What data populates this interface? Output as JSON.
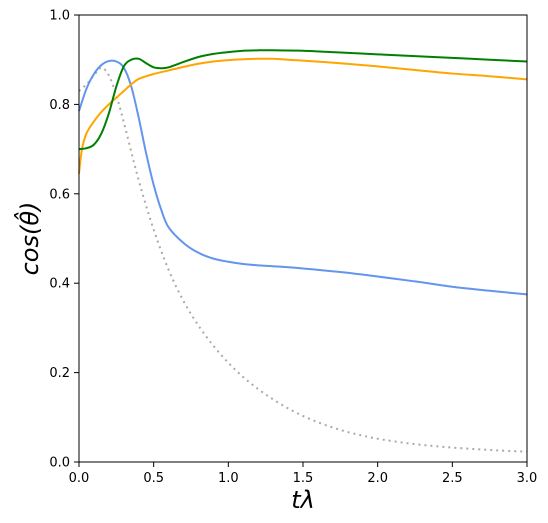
{
  "chart_data": {
    "type": "line",
    "title": "",
    "xlabel": "tλ",
    "ylabel": "cos(θ̂)",
    "xlim": [
      0.0,
      3.0
    ],
    "ylim": [
      0.0,
      1.0
    ],
    "grid": false,
    "legend": "none",
    "x_ticks": [
      "0.0",
      "0.5",
      "1.0",
      "1.5",
      "2.0",
      "2.5",
      "3.0"
    ],
    "y_ticks": [
      "0.0",
      "0.2",
      "0.4",
      "0.6",
      "0.8",
      "1.0"
    ],
    "series": [
      {
        "color": "#aaaaaa",
        "style": "dotted",
        "x": [
          0.0,
          0.05,
          0.1,
          0.15,
          0.2,
          0.25,
          0.3,
          0.4,
          0.5,
          0.6,
          0.7,
          0.8,
          0.9,
          1.0,
          1.1,
          1.2,
          1.3,
          1.4,
          1.5,
          1.6,
          1.7,
          1.8,
          1.9,
          2.0,
          2.2,
          2.4,
          2.6,
          2.8,
          3.0
        ],
        "values": [
          0.83,
          0.845,
          0.865,
          0.882,
          0.865,
          0.82,
          0.76,
          0.63,
          0.52,
          0.43,
          0.36,
          0.305,
          0.26,
          0.222,
          0.19,
          0.163,
          0.14,
          0.12,
          0.103,
          0.089,
          0.077,
          0.067,
          0.059,
          0.052,
          0.042,
          0.035,
          0.03,
          0.026,
          0.023
        ]
      },
      {
        "color": "#6495ed",
        "style": "solid",
        "x": [
          0.0,
          0.05,
          0.1,
          0.15,
          0.2,
          0.25,
          0.3,
          0.35,
          0.4,
          0.45,
          0.5,
          0.55,
          0.6,
          0.7,
          0.8,
          0.9,
          1.0,
          1.1,
          1.2,
          1.3,
          1.5,
          1.75,
          2.0,
          2.25,
          2.5,
          2.75,
          3.0
        ],
        "values": [
          0.785,
          0.835,
          0.868,
          0.888,
          0.897,
          0.896,
          0.882,
          0.84,
          0.77,
          0.69,
          0.62,
          0.565,
          0.525,
          0.49,
          0.468,
          0.455,
          0.448,
          0.443,
          0.44,
          0.438,
          0.433,
          0.425,
          0.415,
          0.404,
          0.392,
          0.383,
          0.375
        ]
      },
      {
        "color": "#ffa500",
        "style": "solid",
        "x": [
          0.0,
          0.02,
          0.05,
          0.1,
          0.15,
          0.2,
          0.25,
          0.3,
          0.35,
          0.4,
          0.5,
          0.6,
          0.7,
          0.8,
          0.9,
          1.0,
          1.1,
          1.2,
          1.3,
          1.4,
          1.5,
          1.75,
          2.0,
          2.25,
          2.5,
          2.75,
          3.0
        ],
        "values": [
          0.645,
          0.7,
          0.735,
          0.762,
          0.783,
          0.8,
          0.815,
          0.83,
          0.845,
          0.857,
          0.868,
          0.876,
          0.884,
          0.891,
          0.896,
          0.899,
          0.901,
          0.902,
          0.902,
          0.9,
          0.898,
          0.892,
          0.885,
          0.877,
          0.869,
          0.863,
          0.856
        ]
      },
      {
        "color": "#008000",
        "style": "solid",
        "x": [
          0.0,
          0.05,
          0.1,
          0.15,
          0.2,
          0.25,
          0.3,
          0.35,
          0.4,
          0.45,
          0.5,
          0.55,
          0.6,
          0.7,
          0.8,
          0.9,
          1.0,
          1.1,
          1.2,
          1.3,
          1.5,
          1.75,
          2.0,
          2.25,
          2.5,
          2.75,
          3.0
        ],
        "values": [
          0.7,
          0.702,
          0.71,
          0.735,
          0.78,
          0.84,
          0.885,
          0.9,
          0.902,
          0.892,
          0.883,
          0.881,
          0.883,
          0.895,
          0.906,
          0.913,
          0.917,
          0.92,
          0.921,
          0.921,
          0.92,
          0.916,
          0.912,
          0.908,
          0.904,
          0.9,
          0.896
        ]
      }
    ]
  }
}
